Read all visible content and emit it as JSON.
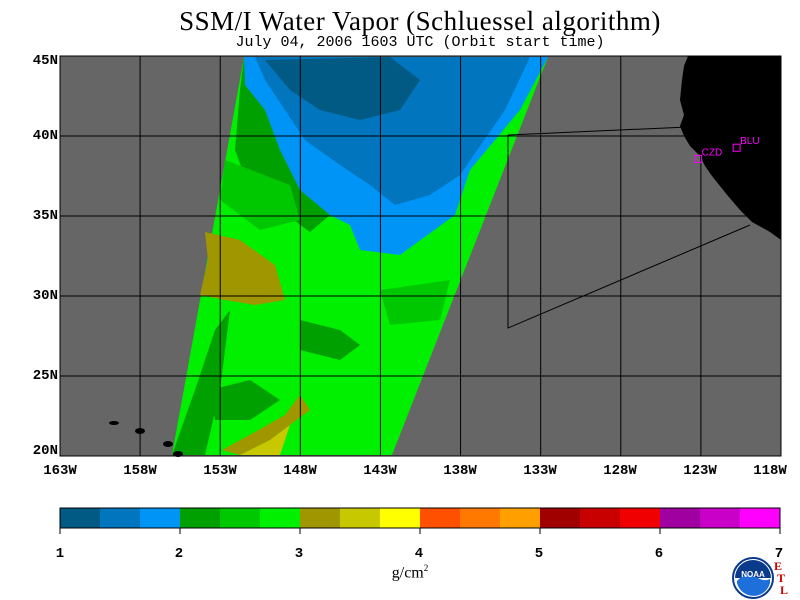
{
  "header": {
    "title": "SSM/I Water Vapor (Schluessel algorithm)",
    "subtitle": "July 04, 2006  1603 UTC  (Orbit start time)"
  },
  "map": {
    "lat_labels": [
      "45N",
      "40N",
      "35N",
      "30N",
      "25N",
      "20N"
    ],
    "lon_labels": [
      "163W",
      "158W",
      "153W",
      "148W",
      "143W",
      "138W",
      "133W",
      "128W",
      "123W",
      "118W"
    ],
    "lat_range": [
      20,
      45
    ],
    "lon_range": [
      -163,
      -118
    ],
    "stations": [
      {
        "code": "CZD",
        "lat": 38.6,
        "lon": -123.2
      },
      {
        "code": "BLU",
        "lat": 39.3,
        "lon": -120.8
      }
    ],
    "colors": {
      "no_data": "#666666",
      "land": "#000000",
      "grid": "#000000",
      "station": "#ff00ff"
    }
  },
  "colorbar": {
    "ticks": [
      "1",
      "2",
      "3",
      "4",
      "5",
      "6",
      "7"
    ],
    "unit_base": "g/cm",
    "unit_exp": "2",
    "colors": [
      "#015a84",
      "#0175be",
      "#0094f7",
      "#00a000",
      "#00c800",
      "#00f000",
      "#a09600",
      "#c8c800",
      "#ffff00",
      "#ff5000",
      "#ff7800",
      "#ffa000",
      "#a00000",
      "#c80000",
      "#f00000",
      "#a000a0",
      "#c800c8",
      "#ff00ff"
    ]
  },
  "logo": {
    "text": "NOAA",
    "lab": "ETL"
  }
}
